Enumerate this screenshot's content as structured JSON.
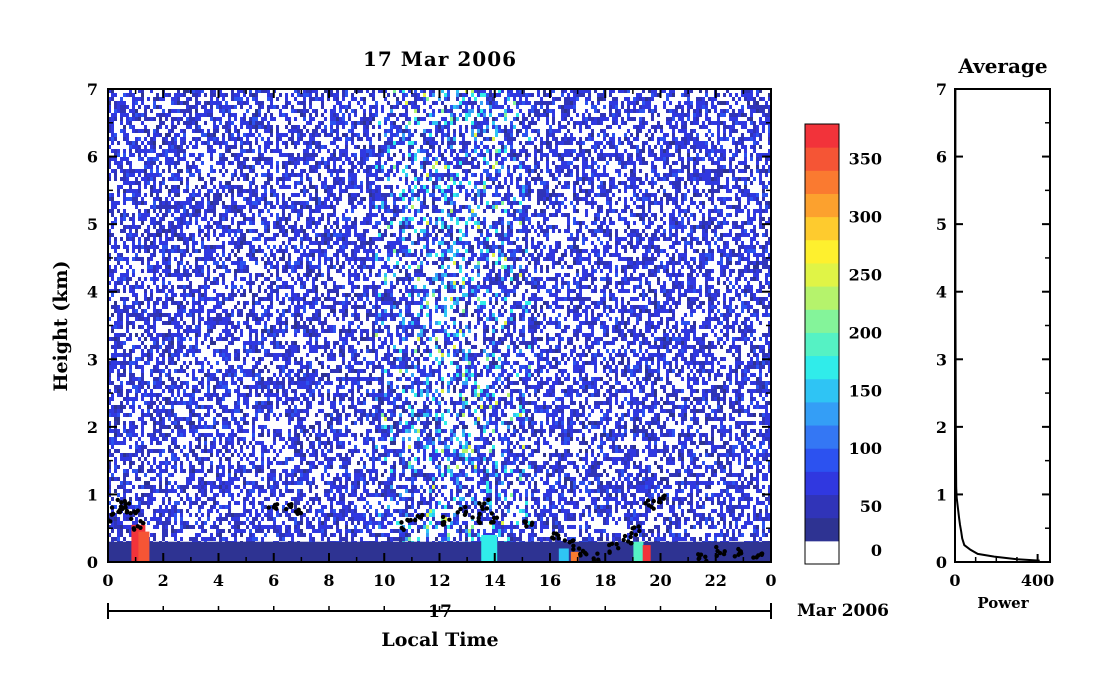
{
  "chart_data": [
    {
      "type": "heatmap",
      "title": "17 Mar 2006",
      "xlabel": "Local Time",
      "ylabel": "Height (km)",
      "xlim": [
        0,
        24
      ],
      "ylim": [
        0,
        7
      ],
      "x_ticks": [
        "0",
        "2",
        "4",
        "6",
        "8",
        "10",
        "12",
        "14",
        "16",
        "18",
        "20",
        "22",
        "0"
      ],
      "y_ticks": [
        "0",
        "1",
        "2",
        "3",
        "4",
        "5",
        "6",
        "7"
      ],
      "date_axis": {
        "day": "17",
        "month_year": "Mar 2006"
      },
      "colorbar": {
        "range": [
          0,
          380
        ],
        "ticks": [
          "0",
          "50",
          "100",
          "150",
          "200",
          "250",
          "300",
          "350"
        ],
        "tick_values": [
          0,
          50,
          100,
          150,
          200,
          250,
          300,
          350
        ],
        "colors": [
          "#ffffff",
          "#2e3392",
          "#3034b8",
          "#3038e0",
          "#2c52f0",
          "#3477f4",
          "#349ef6",
          "#2fc4f4",
          "#30ecea",
          "#55f2c4",
          "#84f49a",
          "#b5f36c",
          "#e0f446",
          "#fef02e",
          "#fecb2e",
          "#fca12e",
          "#fa7a30",
          "#f55535",
          "#f2333a"
        ]
      },
      "boundary_layer_height_km": [
        {
          "x": 0.0,
          "y": 0.6
        },
        {
          "x": 0.3,
          "y": 0.75
        },
        {
          "x": 0.5,
          "y": 0.85
        },
        {
          "x": 0.7,
          "y": 0.8
        },
        {
          "x": 0.9,
          "y": 0.7
        },
        {
          "x": 1.1,
          "y": 0.55
        },
        {
          "x": 6.0,
          "y": 0.85
        },
        {
          "x": 6.5,
          "y": 0.8
        },
        {
          "x": 6.9,
          "y": 0.75
        },
        {
          "x": 10.8,
          "y": 0.55
        },
        {
          "x": 11.2,
          "y": 0.65
        },
        {
          "x": 12.3,
          "y": 0.6
        },
        {
          "x": 12.8,
          "y": 0.75
        },
        {
          "x": 13.3,
          "y": 0.65
        },
        {
          "x": 13.6,
          "y": 0.85
        },
        {
          "x": 13.9,
          "y": 0.65
        },
        {
          "x": 15.2,
          "y": 0.55
        },
        {
          "x": 16.2,
          "y": 0.35
        },
        {
          "x": 16.7,
          "y": 0.25
        },
        {
          "x": 17.2,
          "y": 0.15
        },
        {
          "x": 17.7,
          "y": 0.08
        },
        {
          "x": 18.3,
          "y": 0.2
        },
        {
          "x": 18.8,
          "y": 0.35
        },
        {
          "x": 19.1,
          "y": 0.45
        },
        {
          "x": 19.6,
          "y": 0.85
        },
        {
          "x": 20.0,
          "y": 0.95
        },
        {
          "x": 21.5,
          "y": 0.05
        },
        {
          "x": 22.2,
          "y": 0.15
        },
        {
          "x": 22.8,
          "y": 0.12
        },
        {
          "x": 23.5,
          "y": 0.08
        }
      ]
    },
    {
      "type": "line",
      "title": "Average",
      "xlabel": "Power",
      "ylabel": "",
      "xlim": [
        0,
        460
      ],
      "ylim": [
        0,
        7
      ],
      "x_ticks": [
        "0",
        "400"
      ],
      "y_ticks": [
        "0",
        "1",
        "2",
        "3",
        "4",
        "5",
        "6",
        "7"
      ],
      "series": [
        {
          "x": [
            410,
            300,
            190,
            110,
            75,
            45,
            35,
            30,
            24,
            20,
            16,
            12,
            8,
            6,
            5,
            4,
            3,
            2,
            2,
            2,
            2,
            2,
            2
          ],
          "y": [
            0.02,
            0.04,
            0.08,
            0.12,
            0.18,
            0.25,
            0.35,
            0.45,
            0.55,
            0.65,
            0.75,
            0.85,
            0.95,
            1.1,
            1.5,
            2.0,
            3.0,
            4.0,
            5.0,
            5.5,
            6.0,
            6.5,
            7.0
          ]
        }
      ]
    }
  ]
}
